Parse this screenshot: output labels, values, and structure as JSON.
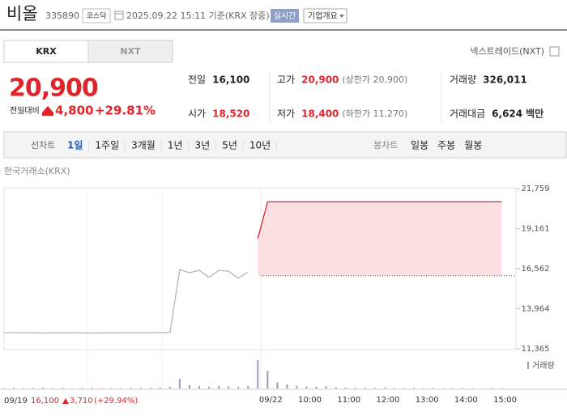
{
  "header": {
    "name": "비올",
    "code": "335890",
    "market": "코스닥",
    "timestamp": "2025.09.22 15:11 기준(KRX 장중)",
    "realtime": "실시간",
    "company_menu": "기업개요"
  },
  "tabs": {
    "items": [
      "KRX",
      "NXT"
    ],
    "selected": 0,
    "nxt_link": "넥스트레이드(NXT)"
  },
  "price": {
    "current": "20,900",
    "change_label": "전일대비",
    "change": "4,800",
    "change_rate": "+29.81%",
    "color": "#e0242a"
  },
  "stats": [
    [
      {
        "label": "전일",
        "value": "16,100",
        "color": "#222222"
      },
      {
        "label": "고가",
        "value": "20,900",
        "note": "(상한가 20,900)",
        "color": "#e0242a"
      },
      {
        "label": "거래량",
        "value": "326,011",
        "color": "#222222"
      }
    ],
    [
      {
        "label": "시가",
        "value": "18,520",
        "color": "#e0242a"
      },
      {
        "label": "저가",
        "value": "18,400",
        "note": "(하한가 11,270)",
        "color": "#e0242a"
      },
      {
        "label": "거래대금",
        "value": "6,624",
        "unit": "백만",
        "color": "#222222"
      }
    ]
  ],
  "toolbar": {
    "line_label": "선차트",
    "line_periods": [
      "1일",
      "1주일",
      "3개월",
      "1년",
      "3년",
      "5년",
      "10년"
    ],
    "selected": 0,
    "candle_label": "봉차트",
    "candle_periods": [
      "일봉",
      "주봉",
      "월봉"
    ]
  },
  "chart_data": {
    "type": "line",
    "source_label": "한국거래소(KRX)",
    "categories": [
      null,
      null,
      null,
      null,
      null,
      null,
      null,
      null,
      null,
      null,
      null,
      null,
      null,
      null,
      null,
      null,
      null,
      null,
      null,
      null,
      null,
      null,
      null,
      null,
      null,
      null,
      null,
      "09/22",
      null,
      null,
      null,
      "10:00",
      null,
      null,
      null,
      "11:00",
      null,
      null,
      null,
      "12:00",
      null,
      null,
      null,
      "13:00",
      null,
      null,
      null,
      "14:00",
      null,
      null,
      null,
      "15:00",
      null
    ],
    "series": [
      {
        "color": "#b5b5b5",
        "values": [
          12400,
          12420,
          12410,
          12400,
          12390,
          12400,
          12410,
          12400,
          12400,
          12390,
          12400,
          12410,
          12400,
          12400,
          12400,
          12410,
          12420,
          12430,
          16500,
          16300,
          16450,
          16000,
          16450,
          16400,
          15950,
          16350,
          null,
          null,
          null,
          null,
          null,
          null,
          null,
          null,
          null,
          null,
          null,
          null,
          null,
          null,
          null,
          null,
          null,
          null,
          null,
          null,
          null,
          null,
          null,
          null,
          null,
          null,
          null
        ]
      },
      {
        "color": "#e0242a",
        "fill": "#fbdfe3",
        "values": [
          null,
          null,
          null,
          null,
          null,
          null,
          null,
          null,
          null,
          null,
          null,
          null,
          null,
          null,
          null,
          null,
          null,
          null,
          null,
          null,
          null,
          null,
          null,
          null,
          null,
          null,
          18520,
          20900,
          20900,
          20900,
          20900,
          20900,
          20900,
          20900,
          20900,
          20900,
          20900,
          20900,
          20900,
          20900,
          20900,
          20900,
          20900,
          20900,
          20900,
          20900,
          20900,
          20900,
          20900,
          20900,
          20900,
          20900,
          null
        ]
      }
    ],
    "reference_line": 16100,
    "ylim": [
      11365,
      21759
    ],
    "yticks": [
      {
        "value": 21759,
        "label": "21,759"
      },
      {
        "value": 19161,
        "label": "19,161"
      },
      {
        "value": 16562,
        "label": "16,562"
      },
      {
        "value": 13964,
        "label": "13,964"
      },
      {
        "value": 11365,
        "label": "11,365"
      }
    ],
    "volume": {
      "label": "거래량",
      "color": "#9a9ab4",
      "values": [
        800,
        1200,
        600,
        900,
        1500,
        700,
        1100,
        500,
        900,
        1300,
        600,
        800,
        700,
        1000,
        1200,
        900,
        1600,
        2500,
        14000,
        5000,
        3500,
        2500,
        4000,
        3000,
        2000,
        3500,
        42000,
        26000,
        9000,
        6000,
        4000,
        3000,
        2500,
        3500,
        2000,
        1500,
        1200,
        1000,
        900,
        1500,
        800,
        700,
        1100,
        600,
        900,
        500,
        700,
        800,
        600,
        500,
        900,
        700,
        null
      ]
    },
    "footer": {
      "date": "09/19",
      "price": "16,100",
      "change": "3,710",
      "rate": "(+29.94%)",
      "color": "#e0242a"
    }
  }
}
